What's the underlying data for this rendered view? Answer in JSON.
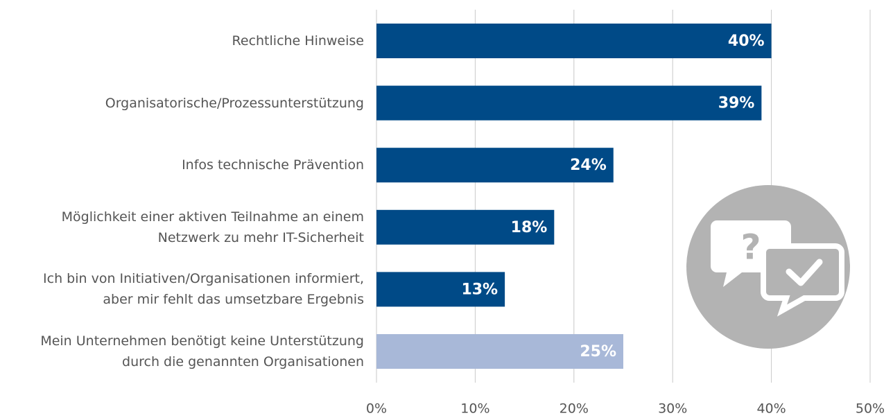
{
  "chart_data": {
    "type": "bar",
    "orientation": "horizontal",
    "categories": [
      "Rechtliche Hinweise",
      "Organisatorische/Prozessunterstützung",
      "Infos technische Prävention",
      "Möglichkeit einer aktiven Teilnahme an einem\nNetzwerk zu mehr IT-Sicherheit",
      "Ich bin von Initiativen/Organisationen informiert,\naber mir fehlt das umsetzbare Ergebnis",
      "Mein Unternehmen benötigt keine Unterstützung\ndurch die genannten Organisationen"
    ],
    "values": [
      40,
      39,
      24,
      18,
      13,
      25
    ],
    "value_labels": [
      "40%",
      "39%",
      "24%",
      "18%",
      "13%",
      "25%"
    ],
    "colors": [
      "#004a87",
      "#004a87",
      "#004a87",
      "#004a87",
      "#004a87",
      "#a8b8d8"
    ],
    "xlim": [
      0,
      50
    ],
    "xticks": [
      {
        "value": 0,
        "label": "0%"
      },
      {
        "value": 10,
        "label": "10%"
      },
      {
        "value": 20,
        "label": "20%"
      },
      {
        "value": 30,
        "label": "30%"
      },
      {
        "value": 40,
        "label": "40%"
      },
      {
        "value": 50,
        "label": "50%"
      }
    ],
    "grid": true
  }
}
